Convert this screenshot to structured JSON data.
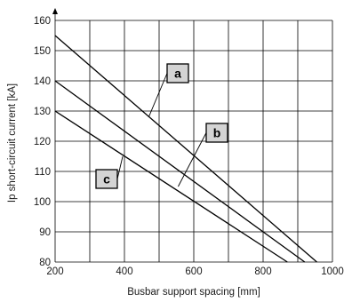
{
  "chart_data": {
    "type": "line",
    "title": "",
    "xlabel": "Busbar support spacing [mm]",
    "ylabel": "Ip short-circuit current [kA]",
    "xlim": [
      200,
      1000
    ],
    "ylim": [
      80,
      160
    ],
    "x_ticks": [
      200,
      400,
      600,
      800,
      1000
    ],
    "y_ticks": [
      80,
      90,
      100,
      110,
      120,
      130,
      140,
      150,
      160
    ],
    "x_grid_step": 100,
    "y_grid_step": 10,
    "grid": true,
    "series": [
      {
        "name": "a",
        "x": [
          200,
          955
        ],
        "y": [
          155,
          80
        ]
      },
      {
        "name": "b",
        "x": [
          200,
          920
        ],
        "y": [
          140,
          80
        ]
      },
      {
        "name": "c",
        "x": [
          200,
          870
        ],
        "y": [
          130,
          80
        ]
      }
    ],
    "annotations": [
      {
        "text": "a",
        "series": "a",
        "point": [
          470,
          128
        ]
      },
      {
        "text": "b",
        "series": "b",
        "point": [
          555,
          105
        ]
      },
      {
        "text": "c",
        "series": "c",
        "point": [
          395,
          115
        ]
      }
    ]
  }
}
